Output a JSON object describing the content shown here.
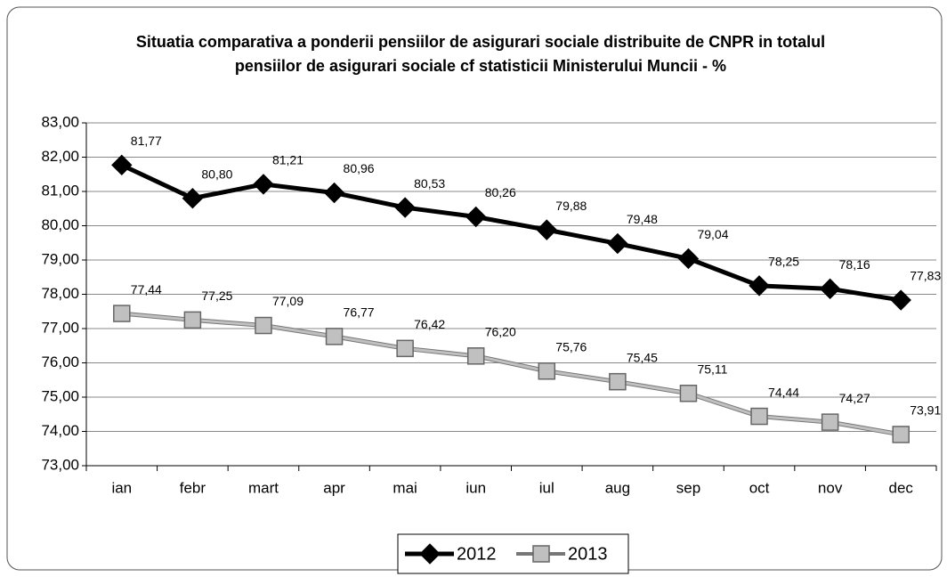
{
  "chart_data": {
    "type": "line",
    "title": "Situatia comparativa a ponderii pensiilor de asigurari sociale distribuite de CNPR in totalul pensiilor de asigurari sociale cf statisticii Ministerului Muncii - %",
    "categories": [
      "ian",
      "febr",
      "mart",
      "apr",
      "mai",
      "iun",
      "iul",
      "aug",
      "sep",
      "oct",
      "nov",
      "dec"
    ],
    "series": [
      {
        "name": "2012",
        "color": "#000000",
        "values": [
          81.77,
          80.8,
          81.21,
          80.96,
          80.53,
          80.26,
          79.88,
          79.48,
          79.04,
          78.25,
          78.16,
          77.83
        ],
        "value_labels": [
          "81,77",
          "80,80",
          "81,21",
          "80,96",
          "80,53",
          "80,26",
          "79,88",
          "79,48",
          "79,04",
          "78,25",
          "78,16",
          "77,83"
        ]
      },
      {
        "name": "2013",
        "color": "#c0c0c0",
        "values": [
          77.44,
          77.25,
          77.09,
          76.77,
          76.42,
          76.2,
          75.76,
          75.45,
          75.11,
          74.44,
          74.27,
          73.91
        ],
        "value_labels": [
          "77,44",
          "77,25",
          "77,09",
          "76,77",
          "76,42",
          "76,20",
          "75,76",
          "75,45",
          "75,11",
          "74,44",
          "74,27",
          "73,91"
        ]
      }
    ],
    "ylim": [
      73,
      83
    ],
    "yticks": [
      {
        "value": 73,
        "label": "73,00"
      },
      {
        "value": 74,
        "label": "74,00"
      },
      {
        "value": 75,
        "label": "75,00"
      },
      {
        "value": 76,
        "label": "76,00"
      },
      {
        "value": 77,
        "label": "77,00"
      },
      {
        "value": 78,
        "label": "78,00"
      },
      {
        "value": 79,
        "label": "79,00"
      },
      {
        "value": 80,
        "label": "80,00"
      },
      {
        "value": 81,
        "label": "81,00"
      },
      {
        "value": 82,
        "label": "82,00"
      },
      {
        "value": 83,
        "label": "83,00"
      }
    ],
    "grid": true,
    "legend": "bottom"
  }
}
